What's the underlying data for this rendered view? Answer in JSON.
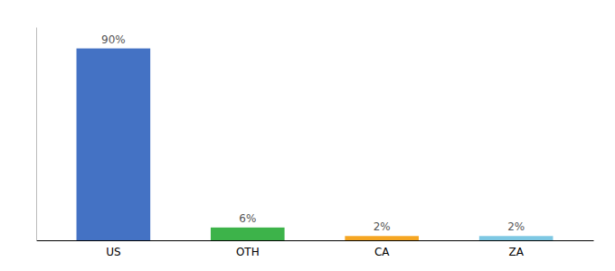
{
  "chart_data": {
    "type": "bar",
    "categories": [
      "US",
      "OTH",
      "CA",
      "ZA"
    ],
    "values": [
      90,
      6,
      2,
      2
    ],
    "value_labels": [
      "90%",
      "6%",
      "2%",
      "2%"
    ],
    "colors": [
      "#4472c4",
      "#3db34a",
      "#f5a623",
      "#7ec8e3"
    ],
    "ylim": [
      0,
      100
    ],
    "data_labels": true,
    "tick_labels": "x"
  }
}
